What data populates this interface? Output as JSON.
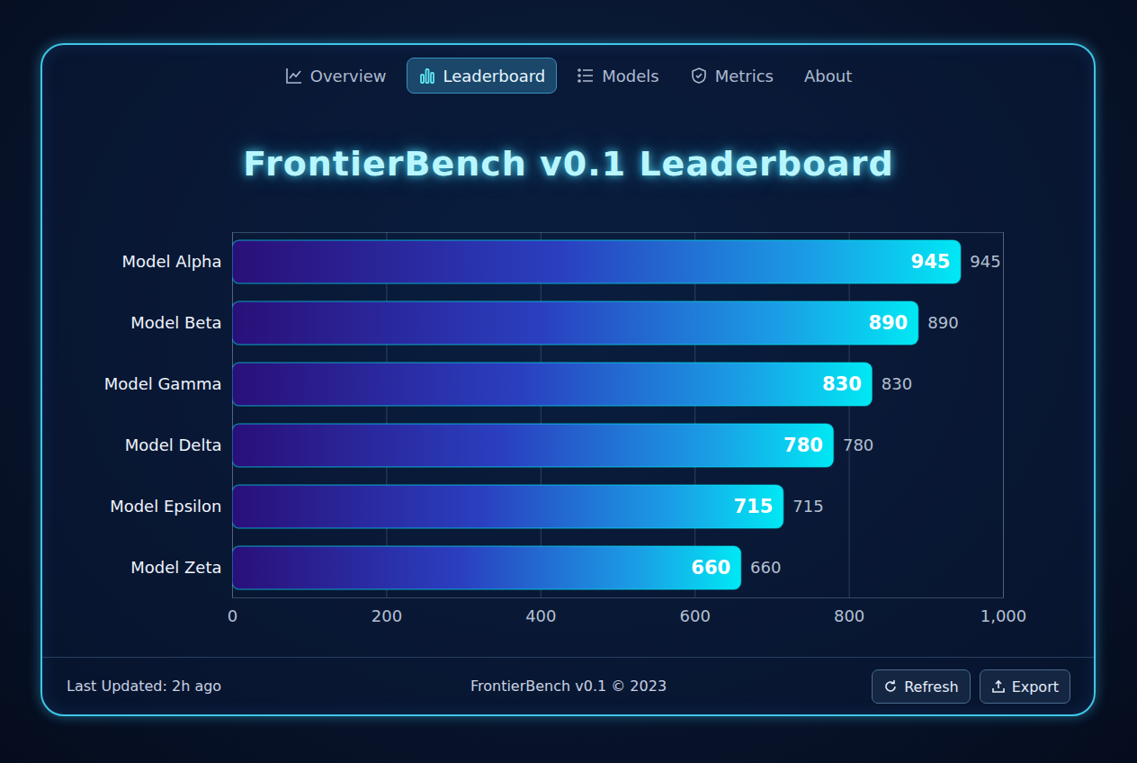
{
  "nav": {
    "items": [
      "Overview",
      "Leaderboard",
      "Models",
      "Metrics",
      "About"
    ],
    "active": "Leaderboard"
  },
  "chart_data": {
    "type": "bar",
    "title": "FrontierBench v0.1 Leaderboard",
    "orientation": "horizontal",
    "categories": [
      "Model Alpha",
      "Model Beta",
      "Model Gamma",
      "Model Delta",
      "Model Epsilon",
      "Model Zeta"
    ],
    "values": [
      945,
      890,
      830,
      780,
      715,
      660
    ],
    "color": "#00e8f4",
    "xlim": [
      0,
      1000
    ],
    "xticks": [
      0,
      200,
      400,
      600,
      800,
      1000
    ],
    "grid": true,
    "data_labels": true
  },
  "footer": {
    "updated": "Last Updated: 2h ago",
    "center": "FrontierBench v0.1 © 2023",
    "buttons": [
      "Refresh",
      "Export"
    ]
  }
}
